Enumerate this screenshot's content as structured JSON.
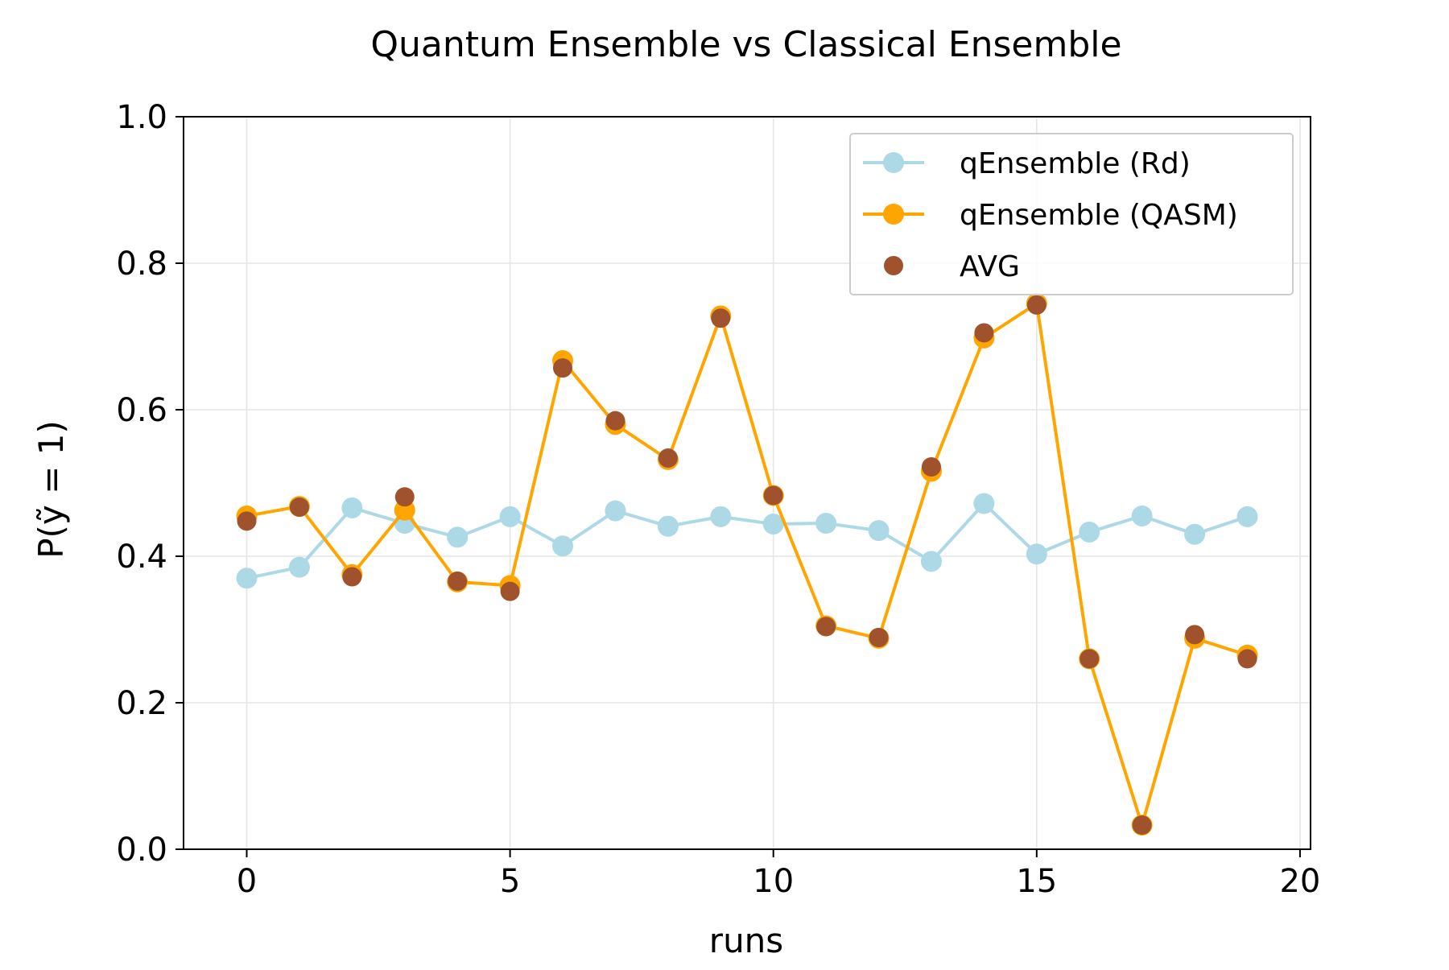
{
  "chart_data": {
    "type": "line",
    "title": "Quantum Ensemble vs Classical Ensemble",
    "xlabel": "runs",
    "ylabel": "P(ỹ = 1)",
    "xlim": [
      -1.2,
      20.2
    ],
    "ylim": [
      0.0,
      1.0
    ],
    "xticks": [
      0,
      5,
      10,
      15,
      20
    ],
    "yticks": [
      0.0,
      0.2,
      0.4,
      0.6,
      0.8,
      1.0
    ],
    "xtick_labels": [
      "0",
      "5",
      "10",
      "15",
      "20"
    ],
    "ytick_labels": [
      "0.0",
      "0.2",
      "0.4",
      "0.6",
      "0.8",
      "1.0"
    ],
    "grid": true,
    "legend_position": "top-right",
    "x": [
      0,
      1,
      2,
      3,
      4,
      5,
      6,
      7,
      8,
      9,
      10,
      11,
      12,
      13,
      14,
      15,
      16,
      17,
      18,
      19
    ],
    "series": [
      {
        "name": "qEnsemble (Rd)",
        "kind": "line-marker",
        "color": "#add8e6",
        "values": [
          0.37,
          0.385,
          0.466,
          0.445,
          0.426,
          0.454,
          0.414,
          0.462,
          0.441,
          0.454,
          0.444,
          0.445,
          0.435,
          0.393,
          0.472,
          0.403,
          0.433,
          0.455,
          0.43,
          0.454
        ]
      },
      {
        "name": "qEnsemble (QASM)",
        "kind": "line-marker",
        "color": "#ffa500",
        "values": [
          0.455,
          0.468,
          0.375,
          0.463,
          0.365,
          0.36,
          0.667,
          0.58,
          0.532,
          0.728,
          0.483,
          0.305,
          0.288,
          0.516,
          0.698,
          0.745,
          0.26,
          0.033,
          0.288,
          0.265
        ]
      },
      {
        "name": "AVG",
        "kind": "scatter",
        "color": "#a0522d",
        "values": [
          0.448,
          0.467,
          0.372,
          0.481,
          0.366,
          0.352,
          0.657,
          0.585,
          0.534,
          0.725,
          0.483,
          0.304,
          0.289,
          0.522,
          0.705,
          0.743,
          0.26,
          0.033,
          0.293,
          0.26
        ]
      }
    ]
  }
}
